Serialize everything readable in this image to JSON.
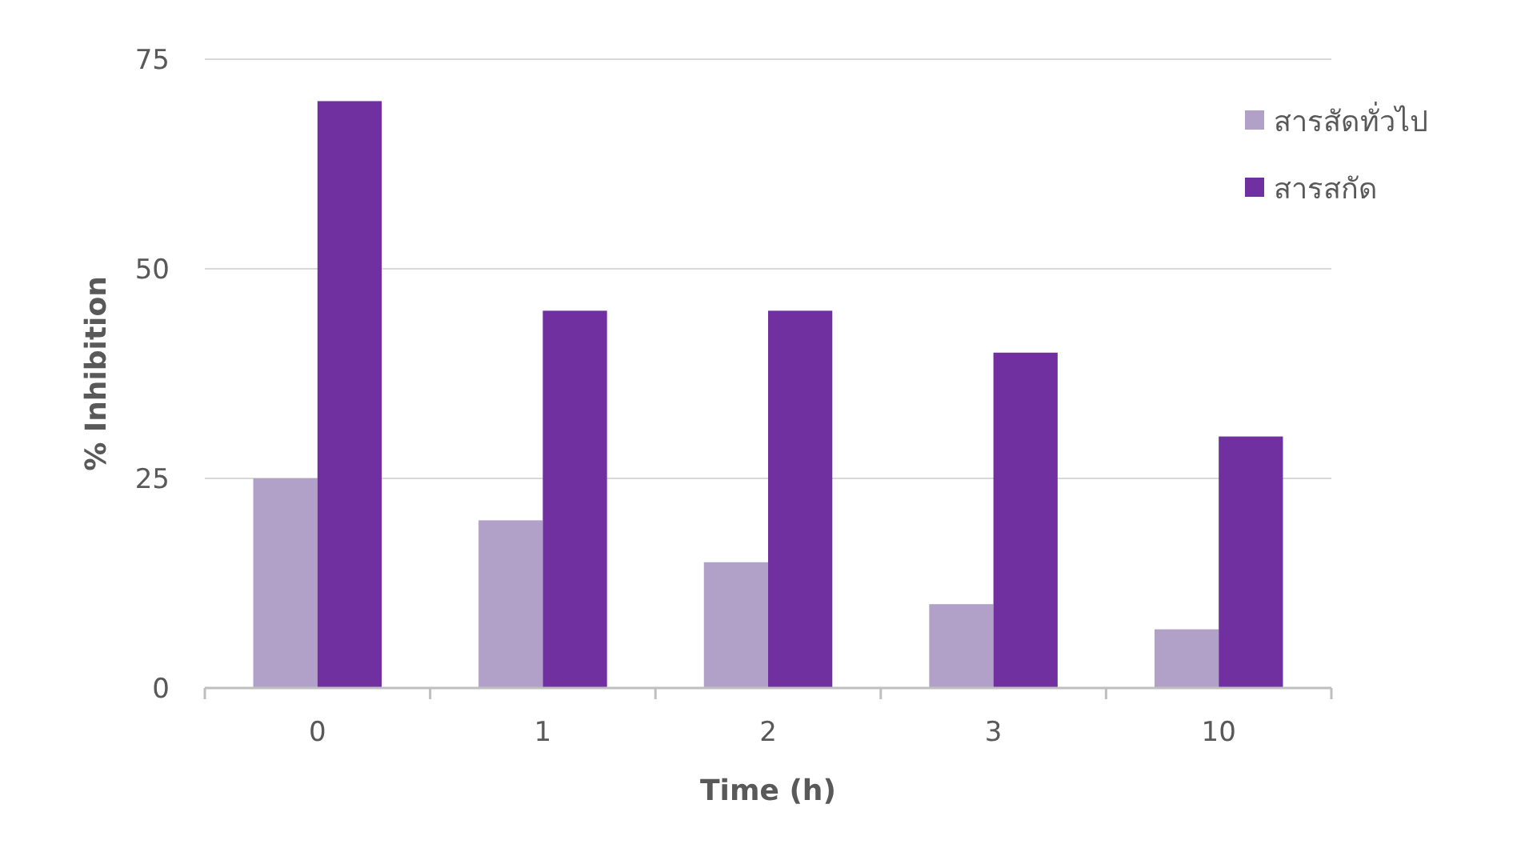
{
  "chart_data": {
    "type": "bar",
    "xlabel": "Time (h)",
    "ylabel": "% Inhibition",
    "categories": [
      "0",
      "1",
      "2",
      "3",
      "10"
    ],
    "series": [
      {
        "name": "สารสัดทั่วไป",
        "color": "#b1a0c7",
        "values": [
          25,
          20,
          15,
          10,
          7
        ]
      },
      {
        "name": "สารสกัด",
        "color": "#7030a0",
        "values": [
          70,
          45,
          45,
          40,
          30
        ]
      }
    ],
    "ylim": [
      0,
      75
    ],
    "yticks": [
      0,
      25,
      50,
      75
    ],
    "grid": "y",
    "legend": "top right"
  }
}
